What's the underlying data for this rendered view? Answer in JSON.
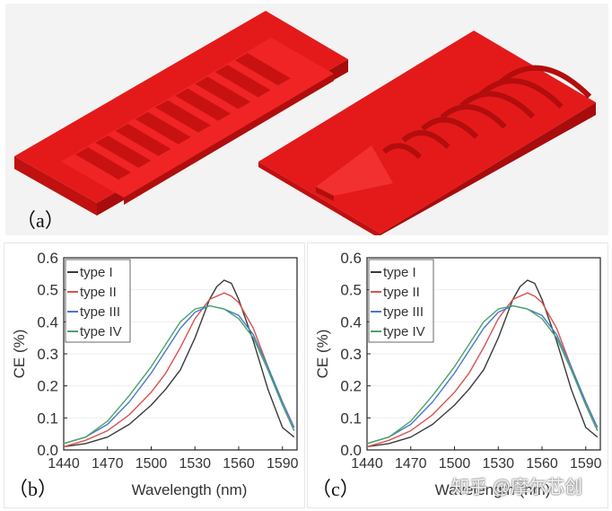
{
  "figure": {
    "label_a": "（a）",
    "label_b": "（b）",
    "label_c": "（c）",
    "watermark": "知乎 @摩尔芯创",
    "model_color": "#e81a1a"
  },
  "chart_data": [
    {
      "type": "line",
      "panel": "b",
      "xlabel": "Wavelength (nm)",
      "ylabel": "CE (%)",
      "xlim": [
        1440,
        1600
      ],
      "ylim": [
        0,
        0.6
      ],
      "xticks": [
        1440,
        1470,
        1500,
        1530,
        1560,
        1590
      ],
      "yticks": [
        0.0,
        0.1,
        0.2,
        0.3,
        0.4,
        0.5,
        0.6
      ],
      "legend_position": "top-left",
      "series": [
        {
          "name": "type I",
          "color": "#3a3a3a",
          "x": [
            1440,
            1455,
            1470,
            1485,
            1500,
            1510,
            1520,
            1530,
            1540,
            1545,
            1550,
            1555,
            1560,
            1570,
            1580,
            1590,
            1598
          ],
          "y": [
            0.01,
            0.02,
            0.04,
            0.08,
            0.14,
            0.19,
            0.25,
            0.35,
            0.47,
            0.51,
            0.53,
            0.52,
            0.47,
            0.34,
            0.19,
            0.07,
            0.04
          ]
        },
        {
          "name": "type II",
          "color": "#d9534f",
          "x": [
            1440,
            1455,
            1470,
            1485,
            1500,
            1510,
            1520,
            1530,
            1540,
            1550,
            1555,
            1560,
            1570,
            1580,
            1590,
            1598
          ],
          "y": [
            0.01,
            0.03,
            0.06,
            0.11,
            0.18,
            0.24,
            0.32,
            0.41,
            0.47,
            0.49,
            0.48,
            0.46,
            0.38,
            0.26,
            0.14,
            0.06
          ]
        },
        {
          "name": "type III",
          "color": "#4a78c8",
          "x": [
            1440,
            1455,
            1470,
            1485,
            1500,
            1510,
            1520,
            1530,
            1540,
            1550,
            1560,
            1570,
            1580,
            1590,
            1598
          ],
          "y": [
            0.02,
            0.04,
            0.08,
            0.15,
            0.24,
            0.31,
            0.38,
            0.43,
            0.45,
            0.44,
            0.42,
            0.36,
            0.26,
            0.15,
            0.07
          ]
        },
        {
          "name": "type IV",
          "color": "#4aa36a",
          "x": [
            1440,
            1455,
            1470,
            1485,
            1500,
            1510,
            1520,
            1530,
            1540,
            1550,
            1560,
            1570,
            1580,
            1590,
            1598
          ],
          "y": [
            0.02,
            0.04,
            0.09,
            0.17,
            0.26,
            0.33,
            0.4,
            0.44,
            0.45,
            0.44,
            0.41,
            0.35,
            0.25,
            0.14,
            0.06
          ]
        }
      ]
    },
    {
      "type": "line",
      "panel": "c",
      "xlabel": "Wavelength (nm)",
      "ylabel": "CE (%)",
      "xlim": [
        1440,
        1600
      ],
      "ylim": [
        0,
        0.6
      ],
      "xticks": [
        1440,
        1470,
        1500,
        1530,
        1560,
        1590
      ],
      "yticks": [
        0.0,
        0.1,
        0.2,
        0.3,
        0.4,
        0.5,
        0.6
      ],
      "legend_position": "top-left",
      "series": [
        {
          "name": "type I",
          "color": "#3a3a3a",
          "x": [
            1440,
            1455,
            1470,
            1485,
            1500,
            1510,
            1520,
            1530,
            1540,
            1545,
            1550,
            1555,
            1560,
            1570,
            1580,
            1590,
            1598
          ],
          "y": [
            0.01,
            0.02,
            0.04,
            0.08,
            0.14,
            0.19,
            0.25,
            0.35,
            0.47,
            0.51,
            0.53,
            0.52,
            0.47,
            0.34,
            0.19,
            0.07,
            0.04
          ]
        },
        {
          "name": "type II",
          "color": "#d9534f",
          "x": [
            1440,
            1455,
            1470,
            1485,
            1500,
            1510,
            1520,
            1530,
            1540,
            1550,
            1555,
            1560,
            1570,
            1580,
            1590,
            1598
          ],
          "y": [
            0.01,
            0.03,
            0.06,
            0.11,
            0.18,
            0.24,
            0.32,
            0.41,
            0.47,
            0.49,
            0.48,
            0.46,
            0.38,
            0.26,
            0.14,
            0.06
          ]
        },
        {
          "name": "type III",
          "color": "#4a78c8",
          "x": [
            1440,
            1455,
            1470,
            1485,
            1500,
            1510,
            1520,
            1530,
            1540,
            1550,
            1560,
            1570,
            1580,
            1590,
            1598
          ],
          "y": [
            0.02,
            0.04,
            0.08,
            0.15,
            0.24,
            0.31,
            0.38,
            0.43,
            0.45,
            0.44,
            0.42,
            0.36,
            0.26,
            0.15,
            0.07
          ]
        },
        {
          "name": "type IV",
          "color": "#4aa36a",
          "x": [
            1440,
            1455,
            1470,
            1485,
            1500,
            1510,
            1520,
            1530,
            1540,
            1550,
            1560,
            1570,
            1580,
            1590,
            1598
          ],
          "y": [
            0.02,
            0.04,
            0.09,
            0.17,
            0.26,
            0.33,
            0.4,
            0.44,
            0.45,
            0.44,
            0.41,
            0.35,
            0.25,
            0.14,
            0.06
          ]
        }
      ]
    }
  ]
}
